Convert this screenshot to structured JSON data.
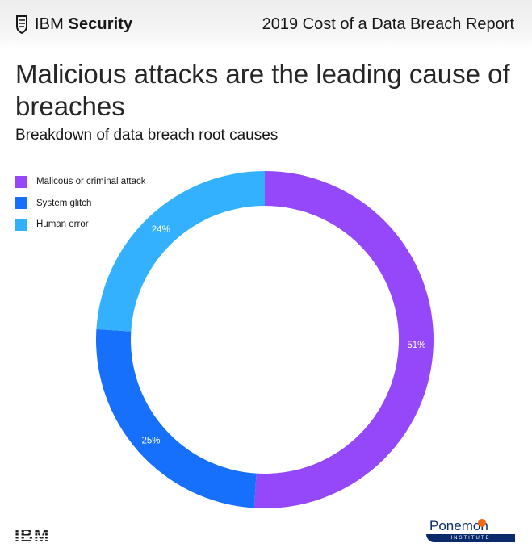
{
  "header": {
    "brand_name": "IBM",
    "brand_suffix": "Security",
    "report_title": "2019 Cost of a Data Breach Report"
  },
  "headline": "Malicious attacks are the leading cause of breaches",
  "subhead": "Breakdown of data breach root causes",
  "legend": [
    {
      "label": "Malicous or criminal attack",
      "color": "#9448fa"
    },
    {
      "label": "System glitch",
      "color": "#1670fc"
    },
    {
      "label": "Human error",
      "color": "#33b1fe"
    }
  ],
  "chart_data": {
    "type": "pie",
    "donut": true,
    "title": "Breakdown of data breach root causes",
    "categories": [
      "Malicous or criminal attack",
      "System glitch",
      "Human error"
    ],
    "values": [
      51,
      25,
      24
    ],
    "labels": [
      "51%",
      "25%",
      "24%"
    ],
    "colors": [
      "#9448fa",
      "#1670fc",
      "#33b1fe"
    ],
    "legend_position": "top-left"
  },
  "footer": {
    "ibm_logo_text": "IBM",
    "ponemon_name": "Ponemon",
    "ponemon_sub": "INSTITUTE"
  }
}
